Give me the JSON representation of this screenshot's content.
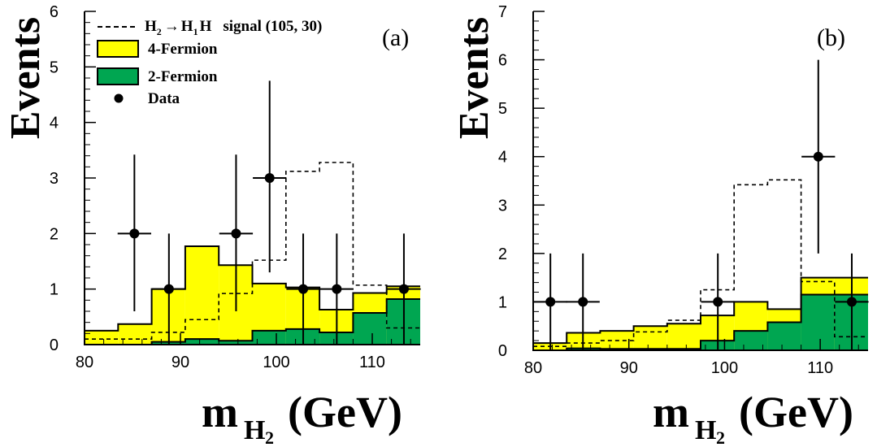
{
  "colors": {
    "four_fermion": "#ffff00",
    "two_fermion": "#00a651",
    "line": "#000000"
  },
  "axis_labels": {
    "y": "Events",
    "x_prefix": "m",
    "x_subscript": "H",
    "x_subscript2": "2",
    "x_suffix": "(GeV)"
  },
  "legend": {
    "signal": {
      "pre": "H",
      "pre_sub": "2",
      "arrow": "→",
      "mid": "H",
      "mid_sub": "1",
      "post": "H",
      "tail": "signal (105, 30)"
    },
    "four_fermion": "4-Fermion",
    "two_fermion": "2-Fermion",
    "data": "Data"
  },
  "chart_data": [
    {
      "type": "bar",
      "panel_label": "(a)",
      "xlim": [
        80,
        115
      ],
      "ylim": [
        0,
        6
      ],
      "xticks": [
        "80",
        "90",
        "100",
        "110"
      ],
      "yticks": [
        "0",
        "1",
        "2",
        "3",
        "4",
        "5",
        "6"
      ],
      "bin_edges": [
        80,
        83.5,
        87,
        90.5,
        94,
        97.5,
        101,
        104.5,
        108,
        111.5,
        115
      ],
      "series": [
        {
          "name": "4-Fermion",
          "values": [
            0.25,
            0.37,
            1.0,
            1.77,
            1.43,
            1.1,
            1.03,
            0.63,
            0.93,
            1.05
          ]
        },
        {
          "name": "2-Fermion",
          "values": [
            0.0,
            0.0,
            0.05,
            0.1,
            0.07,
            0.25,
            0.28,
            0.22,
            0.57,
            0.82
          ]
        },
        {
          "name": "H2 → H1 H signal (105, 30)",
          "values": [
            0.1,
            0.1,
            0.22,
            0.45,
            0.92,
            1.52,
            3.12,
            3.28,
            1.07,
            0.3
          ]
        },
        {
          "name": "Data",
          "x": [
            85.2,
            88.8,
            95.8,
            99.3,
            102.8,
            106.3,
            113.3
          ],
          "y": [
            2,
            1,
            2,
            3,
            1,
            1,
            1
          ],
          "y_low": [
            0.6,
            0,
            0.6,
            1.3,
            0,
            0,
            0
          ],
          "y_high": [
            3.42,
            2.0,
            3.42,
            4.75,
            2.0,
            2.0,
            2.0
          ],
          "x_err": 1.75
        }
      ]
    },
    {
      "type": "bar",
      "panel_label": "(b)",
      "xlim": [
        80,
        115
      ],
      "ylim": [
        0,
        7
      ],
      "xticks": [
        "80",
        "90",
        "100",
        "110"
      ],
      "yticks": [
        "0",
        "1",
        "2",
        "3",
        "4",
        "5",
        "6",
        "7"
      ],
      "bin_edges": [
        80,
        83.5,
        87,
        90.5,
        94,
        97.5,
        101,
        104.5,
        108,
        111.5,
        115
      ],
      "series": [
        {
          "name": "4-Fermion",
          "values": [
            0.15,
            0.36,
            0.4,
            0.5,
            0.55,
            0.72,
            1.0,
            0.85,
            1.5,
            1.5
          ]
        },
        {
          "name": "2-Fermion",
          "values": [
            0.0,
            0.04,
            0.03,
            0.03,
            0.03,
            0.2,
            0.4,
            0.58,
            1.15,
            1.15
          ]
        },
        {
          "name": "H2 → H1 H signal (105, 30)",
          "values": [
            0.08,
            0.15,
            0.2,
            0.38,
            0.62,
            1.25,
            3.42,
            3.52,
            1.42,
            0.28
          ]
        },
        {
          "name": "Data",
          "x": [
            81.8,
            85.2,
            99.3,
            109.8,
            113.3
          ],
          "y": [
            1,
            1,
            1,
            4,
            1
          ],
          "y_low": [
            0,
            0,
            0,
            2.0,
            0
          ],
          "y_high": [
            2.0,
            2.0,
            2.0,
            6.0,
            2.0
          ],
          "x_err": 1.75
        }
      ]
    }
  ]
}
